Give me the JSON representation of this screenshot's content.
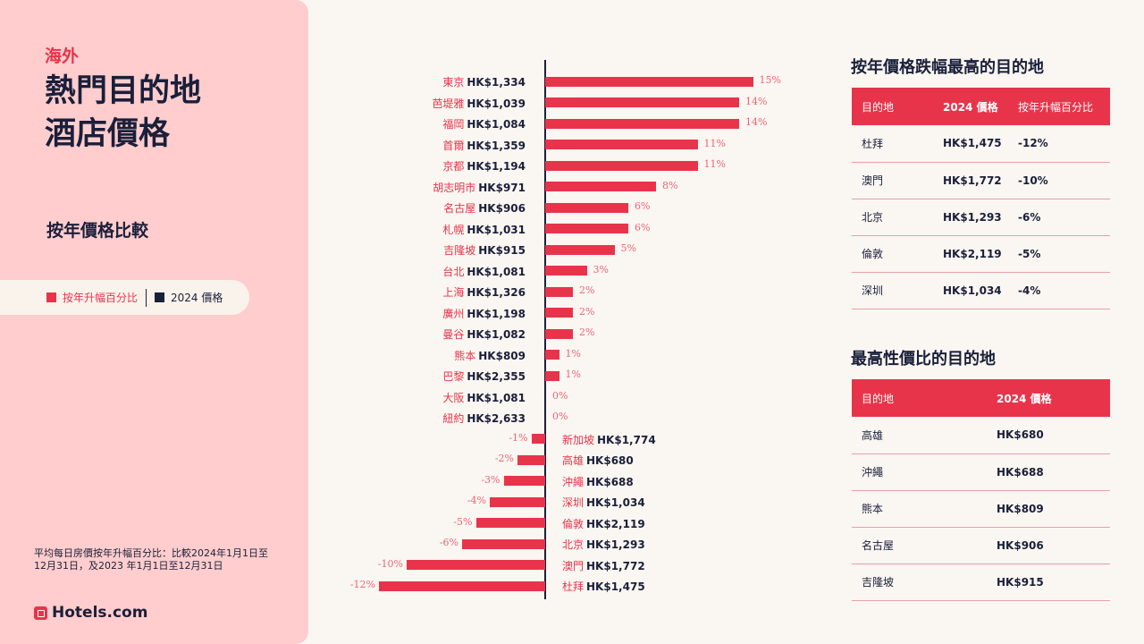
{
  "left": {
    "eyebrow": "海外",
    "title_line1": "熱門目的地",
    "title_line2": "酒店價格",
    "subtitle": "按年價格比較",
    "legend": [
      {
        "label": "按年升幅百分比",
        "color": "#e8344a"
      },
      {
        "label": "2024 價格",
        "color": "#1a1f3a"
      }
    ],
    "note": "平均每日房價按年升幅百分比：比較2024年1月1日至12月31日，及2023 年1月1日至12月31日",
    "logo": "Hotels.com"
  },
  "chart_data": {
    "type": "bar",
    "orientation": "horizontal",
    "categories": [
      "東京",
      "芭堤雅",
      "福岡",
      "首爾",
      "京都",
      "胡志明市",
      "名古屋",
      "札幌",
      "吉隆坡",
      "台北",
      "上海",
      "廣州",
      "曼谷",
      "熊本",
      "巴黎",
      "大阪",
      "紐約",
      "新加坡",
      "高雄",
      "沖繩",
      "深圳",
      "倫敦",
      "北京",
      "澳門",
      "杜拜"
    ],
    "prices": [
      "HK$1,334",
      "HK$1,039",
      "HK$1,084",
      "HK$1,359",
      "HK$1,194",
      "HK$971",
      "HK$906",
      "HK$1,031",
      "HK$915",
      "HK$1,081",
      "HK$1,326",
      "HK$1,198",
      "HK$1,082",
      "HK$809",
      "HK$2,355",
      "HK$1,081",
      "HK$2,633",
      "HK$1,774",
      "HK$680",
      "HK$688",
      "HK$1,034",
      "HK$2,119",
      "HK$1,293",
      "HK$1,772",
      "HK$1,475"
    ],
    "values": [
      15,
      14,
      14,
      11,
      11,
      8,
      6,
      6,
      5,
      3,
      2,
      2,
      2,
      1,
      1,
      0,
      0,
      -1,
      -2,
      -3,
      -4,
      -5,
      -6,
      -10,
      -12
    ],
    "value_labels": [
      "15%",
      "14%",
      "14%",
      "11%",
      "11%",
      "8%",
      "6%",
      "6%",
      "5%",
      "3%",
      "2%",
      "2%",
      "2%",
      "1%",
      "1%",
      "0%",
      "0%",
      "-1%",
      "-2%",
      "-3%",
      "-4%",
      "-5%",
      "-6%",
      "-10%",
      "-12%"
    ],
    "xlim": [
      -12,
      15
    ],
    "grid": false,
    "bar_color": "#e8344a"
  },
  "table1": {
    "title": "按年價格跌幅最高的目的地",
    "headers": [
      "目的地",
      "2024 價格",
      "按年升幅百分比"
    ],
    "rows": [
      [
        "杜拜",
        "HK$1,475",
        "-12%"
      ],
      [
        "澳門",
        "HK$1,772",
        "-10%"
      ],
      [
        "北京",
        "HK$1,293",
        "-6%"
      ],
      [
        "倫敦",
        "HK$2,119",
        "-5%"
      ],
      [
        "深圳",
        "HK$1,034",
        "-4%"
      ]
    ]
  },
  "table2": {
    "title": "最高性價比的目的地",
    "headers": [
      "目的地",
      "2024 價格"
    ],
    "rows": [
      [
        "高雄",
        "HK$680"
      ],
      [
        "沖繩",
        "HK$688"
      ],
      [
        "熊本",
        "HK$809"
      ],
      [
        "名古屋",
        "HK$906"
      ],
      [
        "吉隆坡",
        "HK$915"
      ]
    ]
  }
}
